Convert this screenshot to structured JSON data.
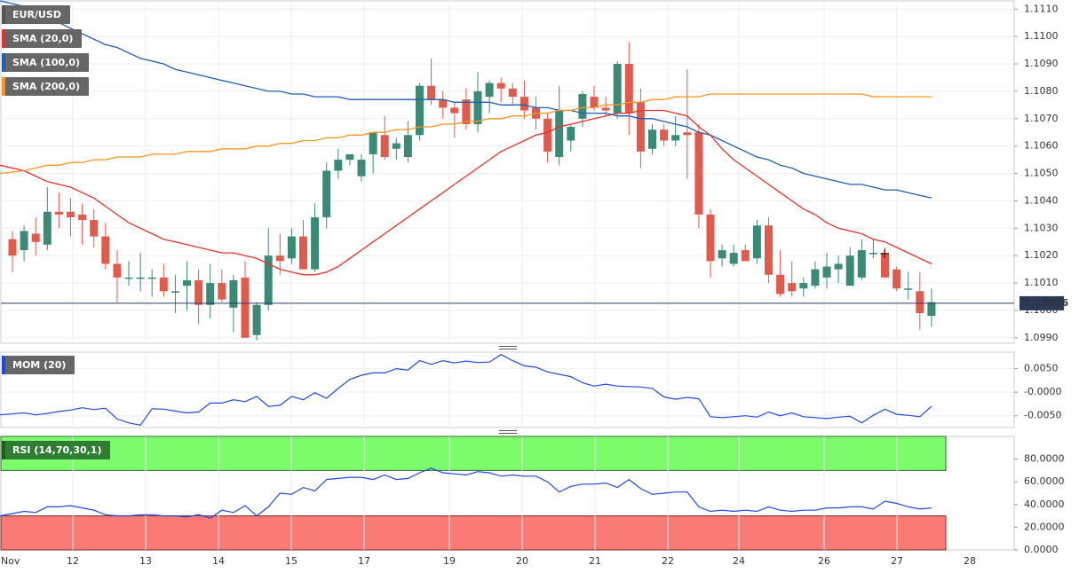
{
  "colors": {
    "bull": "#3b8a77",
    "bear": "#e25a4b",
    "sma20": "#e8302a",
    "sma100": "#1f5fae",
    "sma200": "#f7941d",
    "mom": "#2348e0",
    "rsi": "#2348e0",
    "overbought": "#7cfc6b",
    "oversold": "#fa7a76",
    "price_line": "#2a3a5c"
  },
  "legends": {
    "symbol": "EUR/USD",
    "sma20": "SMA (20,0)",
    "sma100": "SMA (100,0)",
    "sma200": "SMA (200,0)",
    "mom": "MOM (20)",
    "rsi": "RSI (14,70,30,1)"
  },
  "current_price": "1.10026",
  "chart_data": [
    {
      "type": "candlestick",
      "panel": "price",
      "ylim": [
        1.0988,
        1.1113
      ],
      "y_ticks": [
        "1.1110",
        "1.1100",
        "1.1090",
        "1.1080",
        "1.1070",
        "1.1060",
        "1.1050",
        "1.1040",
        "1.1030",
        "1.1020",
        "1.1010",
        "1.1000",
        "1.0990"
      ],
      "x_ticks": [
        "Nov",
        "12",
        "13",
        "14",
        "15",
        "17",
        "19",
        "20",
        "21",
        "22",
        "24",
        "26",
        "27",
        "28"
      ],
      "candles": [
        [
          1.1026,
          1.1029,
          1.1014,
          1.102
        ],
        [
          1.1022,
          1.1031,
          1.1018,
          1.1029
        ],
        [
          1.1028,
          1.1034,
          1.102,
          1.1025
        ],
        [
          1.1024,
          1.1045,
          1.1022,
          1.1036
        ],
        [
          1.1036,
          1.1043,
          1.103,
          1.1035
        ],
        [
          1.1036,
          1.1041,
          1.1027,
          1.1034
        ],
        [
          1.1035,
          1.1039,
          1.1024,
          1.1033
        ],
        [
          1.1033,
          1.1037,
          1.1023,
          1.1027
        ],
        [
          1.1027,
          1.1032,
          1.1015,
          1.1017
        ],
        [
          1.1017,
          1.1022,
          1.1003,
          1.1012
        ],
        [
          1.1012,
          1.1018,
          1.1009,
          1.1012
        ],
        [
          1.1012,
          1.1021,
          1.1007,
          1.1012
        ],
        [
          1.1012,
          1.1015,
          1.1005,
          1.1012
        ],
        [
          1.1012,
          1.1017,
          1.1005,
          1.1007
        ],
        [
          1.1007,
          1.1013,
          1.0999,
          1.1007
        ],
        [
          1.1009,
          1.1018,
          1.1,
          1.1011
        ],
        [
          1.1011,
          1.1015,
          1.0995,
          1.1002
        ],
        [
          1.1002,
          1.1017,
          1.0997,
          1.101
        ],
        [
          1.101,
          1.1015,
          1.1003,
          1.1004
        ],
        [
          1.1001,
          1.1013,
          1.0992,
          1.1011
        ],
        [
          1.1012,
          1.1018,
          1.099,
          1.099
        ],
        [
          1.0991,
          1.1003,
          1.0989,
          1.1002
        ],
        [
          1.1002,
          1.103,
          1.1,
          1.102
        ],
        [
          1.102,
          1.1028,
          1.1013,
          1.1018
        ],
        [
          1.1019,
          1.103,
          1.1017,
          1.1027
        ],
        [
          1.1027,
          1.1033,
          1.1015,
          1.1015
        ],
        [
          1.1015,
          1.1039,
          1.1014,
          1.1034
        ],
        [
          1.1034,
          1.1054,
          1.103,
          1.1051
        ],
        [
          1.1051,
          1.1059,
          1.1048,
          1.1055
        ],
        [
          1.1055,
          1.1057,
          1.1053,
          1.1057
        ],
        [
          1.1049,
          1.1057,
          1.1047,
          1.1055
        ],
        [
          1.1057,
          1.1065,
          1.105,
          1.1065
        ],
        [
          1.1064,
          1.1071,
          1.1055,
          1.1056
        ],
        [
          1.1059,
          1.1063,
          1.1055,
          1.1061
        ],
        [
          1.1056,
          1.1069,
          1.1054,
          1.1064
        ],
        [
          1.1064,
          1.1083,
          1.1062,
          1.1082
        ],
        [
          1.1082,
          1.1092,
          1.1075,
          1.1077
        ],
        [
          1.1077,
          1.108,
          1.107,
          1.1074
        ],
        [
          1.1074,
          1.1076,
          1.1063,
          1.1072
        ],
        [
          1.1077,
          1.1081,
          1.1066,
          1.1068
        ],
        [
          1.1068,
          1.1087,
          1.1065,
          1.108
        ],
        [
          1.1078,
          1.1084,
          1.1072,
          1.1083
        ],
        [
          1.1083,
          1.1085,
          1.1076,
          1.1081
        ],
        [
          1.1081,
          1.1083,
          1.1075,
          1.1078
        ],
        [
          1.1078,
          1.1084,
          1.107,
          1.1073
        ],
        [
          1.1074,
          1.1078,
          1.1066,
          1.107
        ],
        [
          1.107,
          1.1072,
          1.1054,
          1.1058
        ],
        [
          1.1056,
          1.1082,
          1.1053,
          1.1073
        ],
        [
          1.1062,
          1.1068,
          1.1058,
          1.1067
        ],
        [
          1.107,
          1.108,
          1.1067,
          1.1079
        ],
        [
          1.1078,
          1.1082,
          1.1073,
          1.1074
        ],
        [
          1.1074,
          1.1078,
          1.1071,
          1.1073
        ],
        [
          1.1072,
          1.1091,
          1.107,
          1.109
        ],
        [
          1.109,
          1.1098,
          1.1064,
          1.1072
        ],
        [
          1.1076,
          1.1081,
          1.1052,
          1.1058
        ],
        [
          1.1059,
          1.1068,
          1.1057,
          1.1066
        ],
        [
          1.1066,
          1.1068,
          1.106,
          1.1062
        ],
        [
          1.1062,
          1.1071,
          1.106,
          1.1064
        ],
        [
          1.1065,
          1.1088,
          1.1048,
          1.1064
        ],
        [
          1.1065,
          1.1068,
          1.103,
          1.1035
        ],
        [
          1.1035,
          1.1037,
          1.1012,
          1.1018
        ],
        [
          1.1019,
          1.1024,
          1.1016,
          1.1022
        ],
        [
          1.1017,
          1.1024,
          1.1016,
          1.1021
        ],
        [
          1.1022,
          1.1024,
          1.1018,
          1.1018
        ],
        [
          1.1019,
          1.1033,
          1.1017,
          1.1031
        ],
        [
          1.1031,
          1.1034,
          1.101,
          1.1013
        ],
        [
          1.1013,
          1.1022,
          1.1005,
          1.1006
        ],
        [
          1.101,
          1.1018,
          1.1005,
          1.1007
        ],
        [
          1.1008,
          1.1012,
          1.1005,
          1.101
        ],
        [
          1.1009,
          1.1018,
          1.1008,
          1.1015
        ],
        [
          1.1012,
          1.1021,
          1.1008,
          1.1016
        ],
        [
          1.1015,
          1.102,
          1.101,
          1.1017
        ],
        [
          1.1009,
          1.1023,
          1.1009,
          1.102
        ],
        [
          1.1012,
          1.1026,
          1.1011,
          1.1022
        ],
        [
          1.1021,
          1.1026,
          1.1019,
          1.1021
        ],
        [
          1.1021,
          1.1023,
          1.1012,
          1.1012
        ],
        [
          1.1015,
          1.1016,
          1.1007,
          1.1008
        ],
        [
          1.1008,
          1.1014,
          1.1004,
          1.1008
        ],
        [
          1.1007,
          1.1014,
          1.0993,
          1.0999
        ],
        [
          1.0998,
          1.1008,
          1.0994,
          1.1003
        ]
      ]
    },
    {
      "type": "line",
      "panel": "price",
      "series": [
        {
          "name": "SMA (20,0)",
          "values": [
            1.1053,
            1.1051,
            1.1049,
            1.1047,
            1.1046,
            1.1045,
            1.1043,
            1.1041,
            1.1038,
            1.1035,
            1.1032,
            1.103,
            1.1028,
            1.1026,
            1.1025,
            1.1024,
            1.1023,
            1.1022,
            1.1021,
            1.1021,
            1.102,
            1.1019,
            1.1017,
            1.1015,
            1.1014,
            1.1013,
            1.1013,
            1.1014,
            1.1016,
            1.1019,
            1.1022,
            1.1025,
            1.1028,
            1.1031,
            1.1034,
            1.1037,
            1.104,
            1.1043,
            1.1046,
            1.1049,
            1.1052,
            1.1055,
            1.1058,
            1.106,
            1.1062,
            1.1064,
            1.1065,
            1.1067,
            1.1068,
            1.1069,
            1.107,
            1.1071,
            1.1072,
            1.1072,
            1.1073,
            1.1073,
            1.1073,
            1.1072,
            1.1071,
            1.1067,
            1.1064,
            1.1059,
            1.1055,
            1.1052,
            1.1049,
            1.1046,
            1.1043,
            1.104,
            1.1037,
            1.1035,
            1.1032,
            1.103,
            1.1029,
            1.1028,
            1.1026,
            1.1025,
            1.1023,
            1.1021,
            1.1019,
            1.1017
          ]
        },
        {
          "name": "SMA (100,0)",
          "values": [
            1.1113,
            1.1111,
            1.1109,
            1.1107,
            1.1105,
            1.1103,
            1.1101,
            1.1099,
            1.1097,
            1.1096,
            1.1094,
            1.1092,
            1.1091,
            1.109,
            1.1088,
            1.1087,
            1.1086,
            1.1085,
            1.1084,
            1.1083,
            1.1082,
            1.1081,
            1.108,
            1.108,
            1.1079,
            1.1079,
            1.1078,
            1.1078,
            1.1078,
            1.1077,
            1.1077,
            1.1077,
            1.1077,
            1.1077,
            1.1077,
            1.1077,
            1.1077,
            1.1077,
            1.1076,
            1.1076,
            1.1076,
            1.1076,
            1.1075,
            1.1075,
            1.1075,
            1.1074,
            1.1074,
            1.1073,
            1.1073,
            1.1072,
            1.1072,
            1.1072,
            1.1071,
            1.1071,
            1.107,
            1.107,
            1.1069,
            1.1068,
            1.1067,
            1.1065,
            1.1064,
            1.1062,
            1.106,
            1.1058,
            1.1056,
            1.1055,
            1.1053,
            1.1052,
            1.105,
            1.1049,
            1.1048,
            1.1047,
            1.1046,
            1.1046,
            1.1045,
            1.1044,
            1.1044,
            1.1043,
            1.1042,
            1.1041
          ]
        },
        {
          "name": "SMA (200,0)",
          "values": [
            1.105,
            1.1051,
            1.1052,
            1.1053,
            1.1053,
            1.1054,
            1.1054,
            1.1055,
            1.1055,
            1.1056,
            1.1056,
            1.1056,
            1.1057,
            1.1057,
            1.1057,
            1.1058,
            1.1058,
            1.1058,
            1.1059,
            1.1059,
            1.1059,
            1.106,
            1.106,
            1.1061,
            1.1061,
            1.1062,
            1.1062,
            1.1063,
            1.1063,
            1.1064,
            1.1064,
            1.1065,
            1.1065,
            1.1066,
            1.1066,
            1.1067,
            1.1067,
            1.1068,
            1.1068,
            1.1069,
            1.1069,
            1.107,
            1.107,
            1.1071,
            1.1071,
            1.1072,
            1.1072,
            1.1073,
            1.1073,
            1.1074,
            1.1074,
            1.1075,
            1.1075,
            1.1076,
            1.1076,
            1.1077,
            1.1077,
            1.1078,
            1.1078,
            1.1078,
            1.1079,
            1.1079,
            1.1079,
            1.1079,
            1.1079,
            1.1079,
            1.1079,
            1.1079,
            1.1079,
            1.1079,
            1.1079,
            1.1079,
            1.1079,
            1.1079,
            1.1078,
            1.1078,
            1.1078,
            1.1078,
            1.1078,
            1.1078
          ]
        }
      ]
    },
    {
      "type": "line",
      "panel": "momentum",
      "title": "MOM (20)",
      "ylim": [
        -0.0075,
        0.0085
      ],
      "y_ticks": [
        "0.0050",
        "-0.0000",
        "-0.0050"
      ],
      "series": [
        {
          "name": "MOM (20)",
          "values": [
            -0.0048,
            -0.0044,
            -0.0048,
            -0.0045,
            -0.0041,
            -0.0038,
            -0.0033,
            -0.0037,
            -0.0034,
            -0.0057,
            -0.0065,
            -0.007,
            -0.0035,
            -0.0036,
            -0.004,
            -0.0044,
            -0.0042,
            -0.0023,
            -0.0023,
            -0.0016,
            -0.002,
            -0.0009,
            -0.003,
            -0.0028,
            -0.0009,
            -0.0016,
            -0.0001,
            -0.0013,
            0.0008,
            0.0027,
            0.0036,
            0.0041,
            0.0041,
            0.005,
            0.0047,
            0.0067,
            0.0059,
            0.0067,
            0.0062,
            0.0066,
            0.0063,
            0.0064,
            0.008,
            0.0067,
            0.0056,
            0.0053,
            0.0043,
            0.0038,
            0.0033,
            0.002,
            0.0013,
            0.0017,
            0.0013,
            0.0012,
            0.0011,
            0.0008,
            -0.001,
            -0.0015,
            -0.0011,
            -0.0014,
            -0.0052,
            -0.0054,
            -0.0052,
            -0.005,
            -0.0053,
            -0.0042,
            -0.005,
            -0.0044,
            -0.0052,
            -0.0054,
            -0.0056,
            -0.0053,
            -0.0051,
            -0.0065,
            -0.0049,
            -0.0036,
            -0.0047,
            -0.0049,
            -0.0052,
            -0.003
          ]
        }
      ]
    },
    {
      "type": "line",
      "panel": "rsi",
      "title": "RSI (14,70,30,1)",
      "ylim": [
        0,
        100
      ],
      "y_ticks": [
        "80.0000",
        "60.0000",
        "40.0000",
        "20.0000",
        "0.0000"
      ],
      "overbought": 70,
      "oversold": 30,
      "series": [
        {
          "name": "RSI (14,70,30,1)",
          "values": [
            30,
            34,
            33,
            38,
            38,
            39,
            37,
            35,
            31,
            30,
            30,
            31,
            31,
            30,
            30,
            29,
            31,
            28,
            35,
            33,
            39,
            30,
            38,
            50,
            49,
            55,
            52,
            62,
            63,
            64,
            64,
            62,
            66,
            62,
            63,
            68,
            72,
            68,
            67,
            66,
            69,
            68,
            65,
            66,
            65,
            65,
            60,
            51,
            56,
            58,
            58,
            59,
            55,
            62,
            54,
            49,
            50,
            51,
            51,
            38,
            34,
            35,
            34,
            35,
            34,
            38,
            35,
            34,
            35,
            35,
            37,
            37,
            38,
            38,
            36,
            43,
            41,
            38,
            36,
            37
          ]
        }
      ]
    }
  ]
}
